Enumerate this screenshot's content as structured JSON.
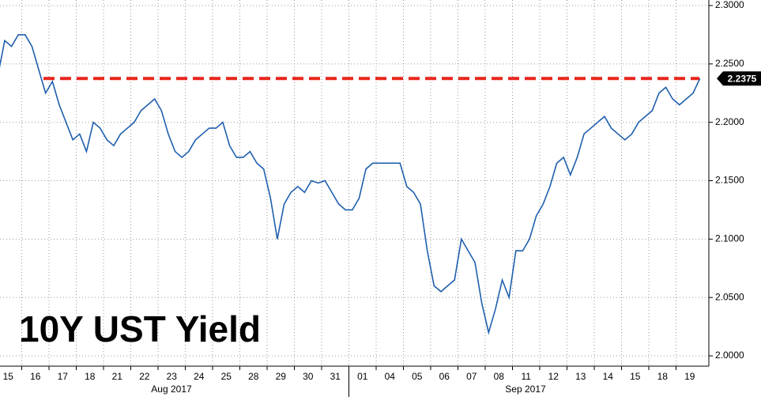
{
  "chart_data": {
    "type": "line",
    "title": "10Y UST Yield",
    "categories": [
      "15",
      null,
      null,
      null,
      "16",
      null,
      null,
      null,
      "17",
      null,
      null,
      null,
      "18",
      null,
      null,
      null,
      "21",
      null,
      null,
      null,
      "22",
      null,
      null,
      null,
      "23",
      null,
      null,
      null,
      "24",
      null,
      null,
      null,
      "25",
      null,
      null,
      null,
      "28",
      null,
      null,
      null,
      "29",
      null,
      null,
      null,
      "30",
      null,
      null,
      null,
      "31",
      null,
      null,
      null,
      "01",
      null,
      null,
      null,
      "04",
      null,
      null,
      null,
      "05",
      null,
      null,
      null,
      "06",
      null,
      null,
      null,
      "07",
      null,
      null,
      null,
      "08",
      null,
      null,
      null,
      "11",
      null,
      null,
      null,
      "12",
      null,
      null,
      null,
      "13",
      null,
      null,
      null,
      "14",
      null,
      null,
      null,
      "15",
      null,
      null,
      null,
      "18",
      null,
      null,
      null,
      "19",
      null,
      null,
      null
    ],
    "month_labels": [
      "Aug 2017",
      "Sep 2017"
    ],
    "values": [
      2.24,
      2.27,
      2.265,
      2.275,
      2.275,
      2.265,
      2.245,
      2.225,
      2.235,
      2.215,
      2.2,
      2.185,
      2.19,
      2.175,
      2.2,
      2.195,
      2.185,
      2.18,
      2.19,
      2.195,
      2.2,
      2.21,
      2.215,
      2.22,
      2.21,
      2.19,
      2.175,
      2.17,
      2.175,
      2.185,
      2.19,
      2.195,
      2.195,
      2.2,
      2.18,
      2.17,
      2.17,
      2.175,
      2.165,
      2.16,
      2.135,
      2.1,
      2.13,
      2.14,
      2.145,
      2.14,
      2.15,
      2.148,
      2.15,
      2.14,
      2.13,
      2.125,
      2.125,
      2.135,
      2.16,
      2.165,
      2.165,
      2.165,
      2.165,
      2.165,
      2.145,
      2.14,
      2.13,
      2.09,
      2.06,
      2.055,
      2.06,
      2.065,
      2.1,
      2.09,
      2.08,
      2.045,
      2.02,
      2.04,
      2.065,
      2.05,
      2.09,
      2.09,
      2.1,
      2.12,
      2.13,
      2.145,
      2.165,
      2.17,
      2.155,
      2.17,
      2.19,
      2.195,
      2.2,
      2.205,
      2.195,
      2.19,
      2.185,
      2.19,
      2.2,
      2.205,
      2.21,
      2.225,
      2.23,
      2.22,
      2.215,
      2.22,
      2.225,
      2.2375
    ],
    "color": "#1f5fae",
    "reference_line": {
      "value": 2.2375,
      "color": "#e8251b"
    },
    "ylim": [
      1.99,
      2.305
    ],
    "yticks": [
      {
        "value": 2.0,
        "label": "2.0000"
      },
      {
        "value": 2.05,
        "label": "2.0500"
      },
      {
        "value": 2.1,
        "label": "2.1000"
      },
      {
        "value": 2.15,
        "label": "2.1500"
      },
      {
        "value": 2.2,
        "label": "2.2000"
      },
      {
        "value": 2.25,
        "label": "2.2500"
      },
      {
        "value": 2.3,
        "label": "2.3000"
      }
    ],
    "grid": true
  }
}
